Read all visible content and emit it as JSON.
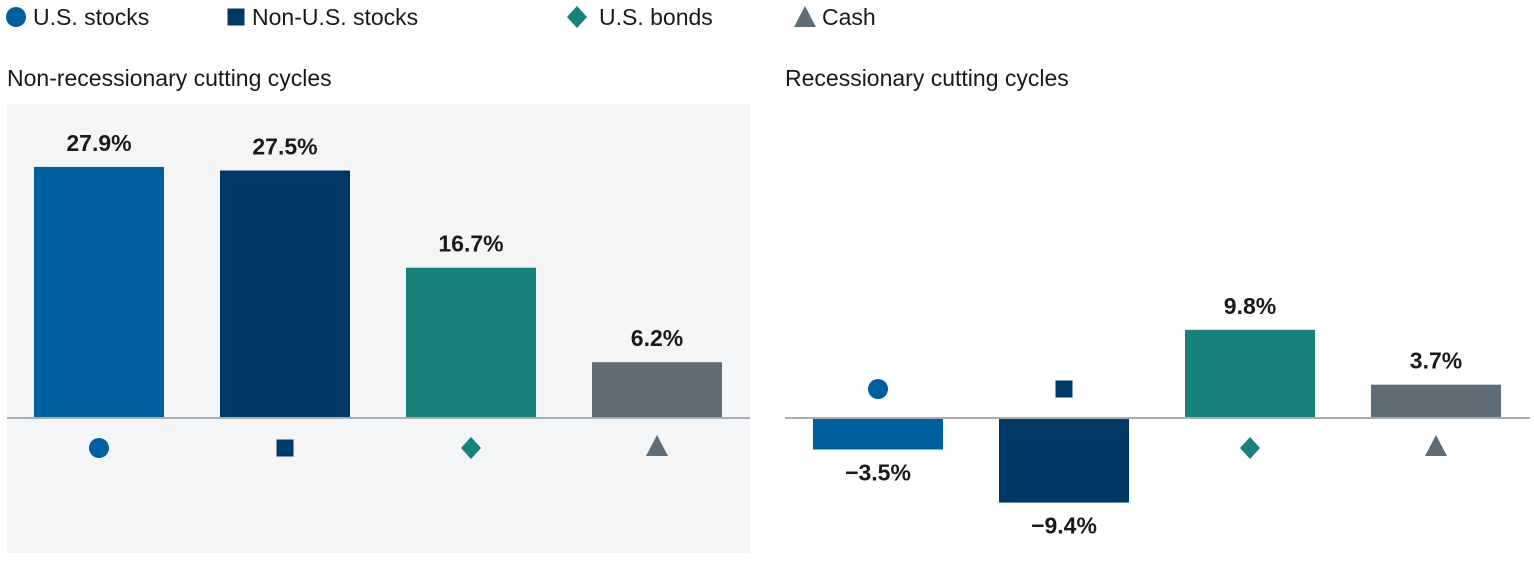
{
  "chart_data": [
    {
      "type": "bar",
      "title": "Non-recessionary cutting cycles",
      "categories": [
        "U.S. stocks",
        "Non-U.S. stocks",
        "U.S. bonds",
        "Cash"
      ],
      "values": [
        27.9,
        27.5,
        16.7,
        6.2
      ],
      "labels": [
        "27.9%",
        "27.5%",
        "16.7%",
        "6.2%"
      ],
      "unit": "%",
      "background": "#f4f5f6"
    },
    {
      "type": "bar",
      "title": "Recessionary cutting cycles",
      "categories": [
        "U.S. stocks",
        "Non-U.S. stocks",
        "U.S. bonds",
        "Cash"
      ],
      "values": [
        -3.5,
        -9.4,
        9.8,
        3.7
      ],
      "labels": [
        "−3.5%",
        "−9.4%",
        "9.8%",
        "3.7%"
      ],
      "unit": "%",
      "background": "#ffffff"
    }
  ],
  "legend": {
    "position": "top",
    "items": [
      {
        "label": "U.S. stocks",
        "marker": "circle",
        "color": "#005f9e"
      },
      {
        "label": "Non-U.S. stocks",
        "marker": "square",
        "color": "#003865"
      },
      {
        "label": "U.S. bonds",
        "marker": "diamond",
        "color": "#17817c"
      },
      {
        "label": "Cash",
        "marker": "triangle",
        "color": "#5e6d78"
      }
    ]
  },
  "baseline_color": "#a9aeb4"
}
